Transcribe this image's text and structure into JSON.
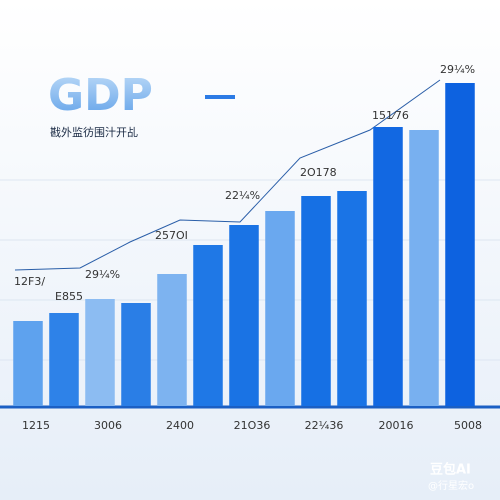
{
  "chart_data": {
    "type": "bar",
    "title": "GDP",
    "subtitle": "戡外监彷围汁开乩",
    "categories": [
      "1215",
      null,
      "3006",
      null,
      "2400",
      null,
      "21O36",
      null,
      "22¼36",
      null,
      "20016",
      null,
      "5008"
    ],
    "values": [
      85,
      93,
      107,
      103,
      132,
      161,
      181,
      195,
      210,
      215,
      279,
      276,
      323
    ],
    "colors": [
      "#5ea2ee",
      "#2e82e8",
      "#8cbcf2",
      "#2a7ee6",
      "#7db3f0",
      "#1f78e6",
      "#1a73e4",
      "#6aa8ef",
      "#1670e4",
      "#1a74e6",
      "#1268e2",
      "#78b0f0",
      "#0d62e0"
    ],
    "ylim": [
      0,
      340
    ],
    "annotations": [
      "12F3/",
      "E855",
      "29¼%",
      "257OI",
      "22¼%",
      "2O178",
      "151⁄76",
      "29¼%"
    ],
    "watermark": [
      "豆包AI",
      "@行星宏o"
    ]
  }
}
